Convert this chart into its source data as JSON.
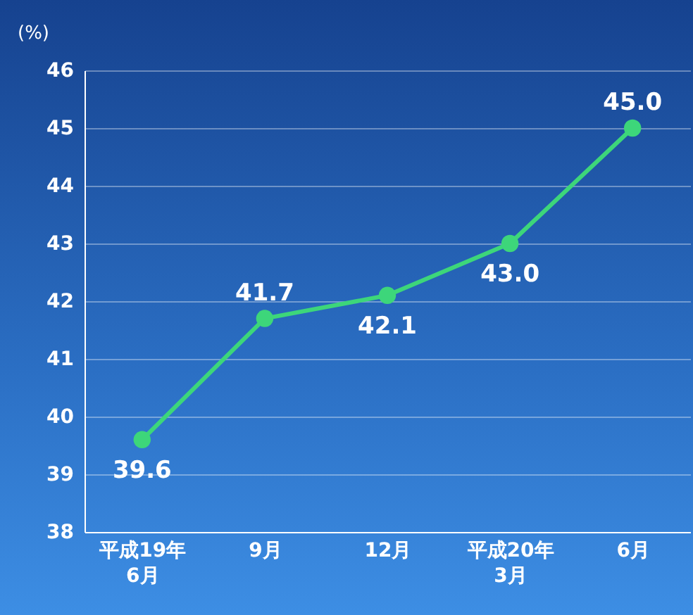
{
  "chart_data": {
    "type": "line",
    "ylabel": "(%)",
    "categories": [
      "平成19年\n6月",
      "9月",
      "12月",
      "平成20年\n3月",
      "6月"
    ],
    "series": [
      {
        "color": "#3dd67a",
        "values": [
          39.6,
          41.7,
          42.1,
          43.0,
          45.0
        ],
        "value_labels": [
          "39.6",
          "41.7",
          "42.1",
          "43.0",
          "45.0"
        ]
      }
    ],
    "ylim": [
      38,
      46
    ],
    "yticks": [
      38,
      39,
      40,
      41,
      42,
      43,
      44,
      45,
      46
    ],
    "grid": "y",
    "marker": "circle"
  }
}
